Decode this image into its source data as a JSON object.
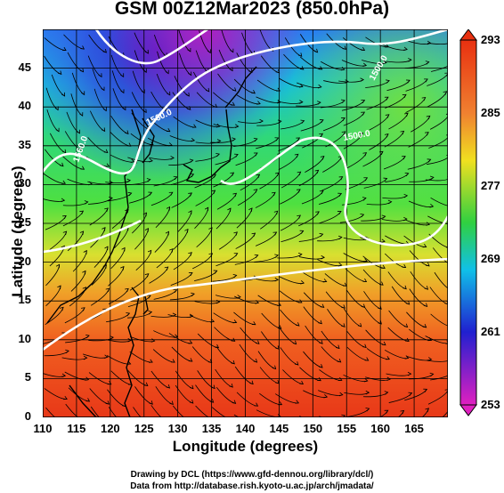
{
  "title": "GSM 00Z12Mar2023 (850.0hPa)",
  "xlabel": "Longitude (degrees)",
  "ylabel": "Latitude (degrees)",
  "x_ticks": [
    "110",
    "115",
    "120",
    "125",
    "130",
    "135",
    "140",
    "145",
    "150",
    "155",
    "160",
    "165"
  ],
  "y_ticks": [
    "0",
    "5",
    "10",
    "15",
    "20",
    "25",
    "30",
    "35",
    "40",
    "45"
  ],
  "colorbar_ticks": [
    "293",
    "285",
    "277",
    "269",
    "261",
    "253"
  ],
  "contour_labels": [
    "1560.0",
    "1560.0",
    "1500.0",
    "1500.0"
  ],
  "credit_line1": "Drawing by DCL (https://www.gfd-dennou.org/library/dcl/)",
  "credit_line2": "Data from http://database.rish.kyoto-u.ac.jp/arch/jmadata/",
  "chart_data": {
    "type": "heatmap",
    "variable": "temperature with streamlines and geopotential height contours",
    "level": "850.0hPa",
    "xlim": [
      110,
      170
    ],
    "ylim": [
      0,
      50
    ],
    "color_range": [
      253,
      293
    ],
    "colors": [
      "#e020c0",
      "#2020d0",
      "#10c0e8",
      "#30d040",
      "#f0e020",
      "#e83010"
    ],
    "grid": true
  }
}
